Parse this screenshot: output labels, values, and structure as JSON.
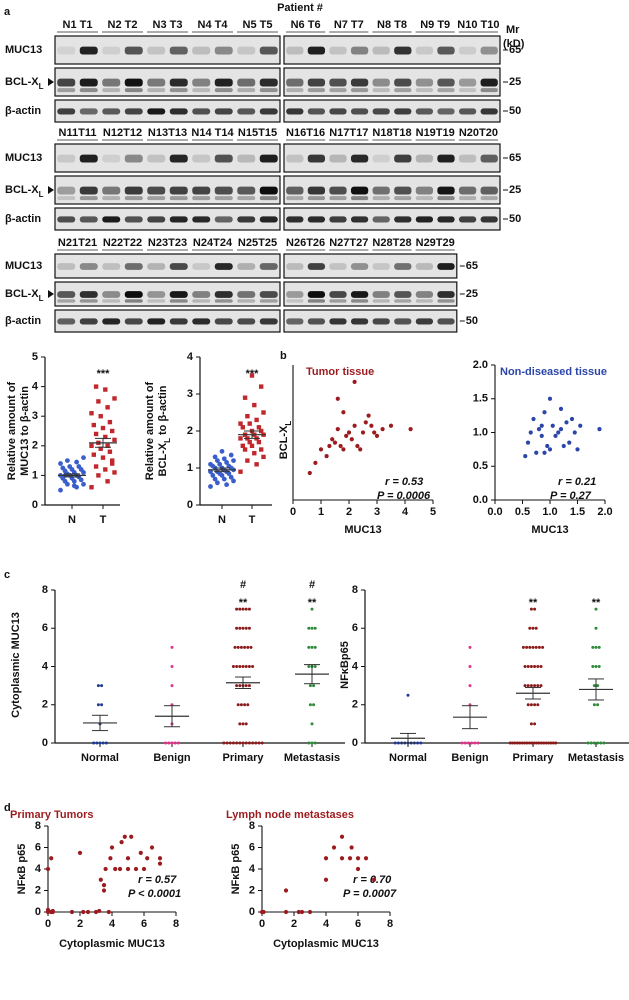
{
  "panel_labels": [
    "a",
    "b",
    "c",
    "d"
  ],
  "blots": {
    "header": "Patient #",
    "mr_label": "Mr",
    "mr_unit": "(kD)",
    "labels": [
      "MUC13",
      {
        "text": "BCL-X",
        "sub": "L"
      },
      "β-actin"
    ],
    "markers": [
      65,
      25,
      50
    ],
    "rows": [
      {
        "left": [
          "N1  T1",
          "N2  T2",
          "N3  T3",
          "N4  T4",
          "N5  T5"
        ],
        "right": [
          "N6  T6",
          "N7  T7",
          "N8  T8",
          "N9  T9",
          "N10  T10"
        ]
      },
      {
        "left": [
          "N11T11",
          "N12T12",
          "N13T13",
          "N14 T14",
          "N15T15"
        ],
        "right": [
          "N16T16",
          "N17T17",
          "N18T18",
          "N19T19",
          "N20T20"
        ]
      },
      {
        "left": [
          "N21T21",
          "N22T22",
          "N23T23",
          "N24T24",
          "N25T25"
        ],
        "right": [
          "N26T26",
          "N27T27",
          "N28T28",
          "N29T29"
        ]
      }
    ]
  },
  "chart_data": [
    {
      "type": "strip",
      "categories": [
        "N",
        "T"
      ],
      "y_label": [
        "Relative amount of",
        "MUC13 to β-actin"
      ],
      "ylim": [
        0,
        5
      ],
      "yticks": [
        0,
        1,
        2,
        3,
        4,
        5
      ],
      "colors": [
        "#3a5fcd",
        "#c0282d"
      ],
      "markers": [
        "circle",
        "square"
      ],
      "significance_labels": [
        null,
        "***"
      ],
      "values": [
        [
          0.5,
          0.6,
          0.7,
          0.7,
          0.8,
          0.8,
          0.85,
          0.9,
          0.9,
          0.95,
          1.0,
          1.0,
          1.0,
          1.05,
          1.1,
          1.1,
          1.15,
          1.2,
          1.2,
          1.25,
          1.3,
          1.3,
          1.4,
          1.45,
          1.5,
          1.6,
          0.65,
          1.0
        ],
        [
          0.6,
          0.8,
          1.0,
          1.1,
          1.2,
          1.3,
          1.5,
          1.6,
          1.7,
          1.8,
          1.9,
          2.0,
          2.0,
          2.1,
          2.2,
          2.3,
          2.4,
          2.5,
          2.6,
          2.7,
          2.8,
          3.0,
          3.1,
          3.3,
          3.5,
          3.6,
          3.9,
          4.0,
          1.4
        ]
      ],
      "means": [
        1.0,
        2.1
      ],
      "sems": [
        0.05,
        0.15
      ]
    },
    {
      "type": "strip",
      "categories": [
        "N",
        "T"
      ],
      "y_label": [
        "Relative amount of",
        "BCL-X"
      ],
      "y_label_sub": "L",
      "y_label_end": "to β-actin",
      "ylim": [
        0,
        4
      ],
      "yticks": [
        0,
        1,
        2,
        3,
        4
      ],
      "colors": [
        "#3a5fcd",
        "#c0282d"
      ],
      "markers": [
        "circle",
        "square"
      ],
      "significance_labels": [
        null,
        "***"
      ],
      "values": [
        [
          0.5,
          0.55,
          0.6,
          0.65,
          0.7,
          0.7,
          0.75,
          0.8,
          0.8,
          0.85,
          0.85,
          0.9,
          0.9,
          0.9,
          0.95,
          0.95,
          1.0,
          1.0,
          1.0,
          1.05,
          1.05,
          1.1,
          1.1,
          1.15,
          1.2,
          1.2,
          1.25,
          1.3,
          1.35,
          1.45
        ],
        [
          0.9,
          1.1,
          1.2,
          1.3,
          1.4,
          1.5,
          1.5,
          1.6,
          1.6,
          1.7,
          1.7,
          1.8,
          1.8,
          1.8,
          1.9,
          1.9,
          1.9,
          2.0,
          2.0,
          2.1,
          2.1,
          2.2,
          2.2,
          2.3,
          2.4,
          2.5,
          2.7,
          2.9,
          3.2,
          3.5
        ]
      ],
      "means": [
        0.95,
        1.9
      ],
      "sems": [
        0.05,
        0.1
      ]
    },
    {
      "type": "scatter",
      "title": "Tumor tissue",
      "title_color": "#9b1b1f",
      "color": "#9b1b1f",
      "x_label": "MUC13",
      "y_label": "BCL-X",
      "y_label_sub": "L",
      "annotations": [
        "r = 0.53",
        "P = 0.0006"
      ],
      "xlim": [
        0,
        5
      ],
      "xticks": [
        0,
        1,
        2,
        3,
        4,
        5
      ],
      "ylim": [
        0,
        4
      ],
      "x": [
        0.6,
        0.8,
        1.0,
        1.2,
        1.3,
        1.4,
        1.5,
        1.6,
        1.7,
        1.8,
        1.8,
        1.9,
        2.0,
        2.1,
        2.2,
        2.3,
        2.4,
        2.5,
        2.6,
        2.7,
        2.8,
        2.9,
        3.0,
        3.2,
        3.5,
        4.2,
        1.6,
        2.2
      ],
      "values": [
        0.8,
        1.1,
        1.5,
        1.3,
        1.6,
        1.8,
        1.7,
        2.1,
        1.6,
        2.6,
        1.5,
        1.9,
        2.0,
        1.8,
        2.2,
        1.6,
        1.5,
        2.0,
        2.3,
        2.5,
        2.2,
        2.0,
        1.9,
        2.1,
        2.2,
        2.1,
        3.0,
        3.5
      ]
    },
    {
      "type": "scatter",
      "title": "Non-diseased tissue",
      "title_color": "#2b46a8",
      "color": "#2b46a8",
      "x_label": "MUC13",
      "annotations": [
        "r = 0.21",
        "P = 0.27"
      ],
      "xlim": [
        0,
        2
      ],
      "xticks": [
        {
          "value": 0,
          "label": "0.0"
        },
        0.5,
        {
          "value": 1,
          "label": "1.0"
        },
        1.5,
        {
          "value": 2,
          "label": "2.0"
        }
      ],
      "ylim": [
        0,
        2
      ],
      "yticks": [
        {
          "value": 0,
          "label": "0.0"
        },
        0.5,
        {
          "value": 1,
          "label": "1.0"
        },
        1.5,
        {
          "value": 2,
          "label": "2.0"
        }
      ],
      "x": [
        0.55,
        0.6,
        0.65,
        0.7,
        0.75,
        0.8,
        0.85,
        0.9,
        0.9,
        0.95,
        1.0,
        1.0,
        1.05,
        1.1,
        1.15,
        1.2,
        1.25,
        1.3,
        1.35,
        1.4,
        1.45,
        1.5,
        1.55,
        1.9,
        1.2,
        0.85
      ],
      "values": [
        0.65,
        0.85,
        1.0,
        1.2,
        0.7,
        1.05,
        0.95,
        1.3,
        0.7,
        0.8,
        1.5,
        0.75,
        1.1,
        0.95,
        1.0,
        1.35,
        0.8,
        1.15,
        0.85,
        1.2,
        1.0,
        0.75,
        1.1,
        1.05,
        1.05,
        1.1
      ]
    },
    {
      "type": "strip",
      "categories": [
        "Normal",
        "Benign",
        "Primary",
        "Metastasis"
      ],
      "y_label": [
        "Cytoplasmic MUC13"
      ],
      "ylim": [
        0,
        8
      ],
      "yticks": [
        0,
        2,
        4,
        6,
        8
      ],
      "colors": [
        "#1f3a93",
        "#e0338a",
        "#8b1a1a",
        "#2e8b3a"
      ],
      "markers": [
        "circle",
        "circle",
        "circle",
        "circle"
      ],
      "significance_labels": [
        null,
        null,
        "**",
        "**"
      ],
      "secondary_labels": [
        null,
        null,
        "#",
        "#"
      ],
      "values": [
        [
          0,
          0,
          0,
          0,
          0,
          1,
          2,
          2,
          3,
          3
        ],
        [
          0,
          0,
          0,
          0,
          0,
          1,
          2,
          3,
          4,
          5
        ],
        [
          0,
          0,
          0,
          0,
          0,
          0,
          0,
          0,
          0,
          0,
          0,
          0,
          0,
          1,
          1,
          1,
          2,
          2,
          2,
          2,
          3,
          3,
          3,
          3,
          3,
          4,
          4,
          4,
          4,
          4,
          4,
          4,
          5,
          5,
          5,
          5,
          5,
          5,
          6,
          6,
          6,
          6,
          6,
          7,
          7,
          7,
          7,
          7
        ],
        [
          0,
          0,
          0,
          1,
          2,
          2,
          3,
          3,
          4,
          4,
          4,
          5,
          5,
          5,
          6,
          6,
          6,
          7
        ]
      ],
      "means": [
        1.05,
        1.4,
        3.15,
        3.6
      ],
      "sems": [
        0.4,
        0.55,
        0.3,
        0.5
      ]
    },
    {
      "type": "strip",
      "categories": [
        "Normal",
        "Benign",
        "Primary",
        "Metastasis"
      ],
      "y_label": [
        "NFκBp65"
      ],
      "ylim": [
        0,
        8
      ],
      "yticks": [
        0,
        2,
        4,
        6,
        8
      ],
      "colors": [
        "#1f3a93",
        "#e0338a",
        "#8b1a1a",
        "#2e8b3a"
      ],
      "markers": [
        "circle",
        "circle",
        "circle",
        "circle"
      ],
      "significance_labels": [
        null,
        null,
        "**",
        "**"
      ],
      "values": [
        [
          0,
          0,
          0,
          0,
          0,
          0,
          0,
          0,
          0,
          2.5
        ],
        [
          0,
          0,
          0,
          0,
          0,
          0,
          2,
          3,
          4,
          5
        ],
        [
          0,
          0,
          0,
          0,
          0,
          0,
          0,
          0,
          0,
          0,
          0,
          0,
          0,
          0,
          0,
          0,
          0,
          0,
          0,
          0,
          1,
          1,
          2,
          2,
          2,
          2,
          3,
          3,
          3,
          3,
          3,
          3,
          4,
          4,
          4,
          4,
          4,
          4,
          5,
          5,
          5,
          5,
          5,
          5,
          5,
          6,
          6,
          6,
          7,
          7
        ],
        [
          0,
          0,
          0,
          0,
          0,
          0,
          2,
          2,
          3,
          3,
          4,
          4,
          4,
          5,
          5,
          5,
          6,
          7
        ]
      ],
      "means": [
        0.25,
        1.35,
        2.6,
        2.8
      ],
      "sems": [
        0.25,
        0.6,
        0.3,
        0.55
      ]
    },
    {
      "type": "scatter",
      "title": "Primary Tumors",
      "title_color": "#9b1b1f",
      "color": "#9b1b1f",
      "x_label": "Cytoplasmic MUC13",
      "y_label": "NFκB p65",
      "annotations": [
        "r = 0.57",
        "P < 0.0001"
      ],
      "xlim": [
        0,
        8
      ],
      "xticks": [
        0,
        2,
        4,
        6,
        8
      ],
      "ylim": [
        0,
        8
      ],
      "yticks": [
        0,
        2,
        4,
        6,
        8
      ],
      "x": [
        0,
        0.2,
        0.3,
        0,
        0.2,
        1.5,
        2,
        2.2,
        2.5,
        3,
        3.2,
        3.3,
        3.5,
        3.5,
        3.6,
        3.8,
        3.9,
        4,
        4.2,
        4.5,
        4.6,
        4.8,
        5,
        5,
        5.2,
        5.5,
        5.8,
        6,
        6.2,
        6.5,
        7,
        7,
        0,
        0.3
      ],
      "values": [
        0,
        0,
        0.1,
        4,
        5,
        0,
        5.5,
        0,
        0,
        0,
        0.1,
        3,
        2.5,
        2,
        4,
        0,
        5,
        6,
        4,
        4,
        6.5,
        7,
        4,
        5,
        7,
        4,
        5.5,
        4,
        5,
        6,
        4.5,
        5,
        0.2,
        0
      ]
    },
    {
      "type": "scatter",
      "title": "Lymph node metastases",
      "title_color": "#9b1b1f",
      "color": "#9b1b1f",
      "x_label": "Cytoplasmic MUC13",
      "y_label": "NFκB p65",
      "annotations": [
        "r = 0.70",
        "P = 0.0007"
      ],
      "xlim": [
        0,
        8
      ],
      "xticks": [
        0,
        2,
        4,
        6,
        8
      ],
      "ylim": [
        0,
        8
      ],
      "yticks": [
        0,
        2,
        4,
        6,
        8
      ],
      "x": [
        0,
        0.1,
        1.5,
        1.5,
        2.3,
        2.5,
        3,
        4,
        4,
        4.5,
        5,
        5,
        5.5,
        5.6,
        6,
        6,
        6.5,
        7
      ],
      "values": [
        0,
        0,
        2,
        0,
        0,
        0,
        0,
        3,
        5,
        6,
        7,
        5,
        5,
        6,
        5,
        4,
        5,
        3
      ]
    }
  ]
}
